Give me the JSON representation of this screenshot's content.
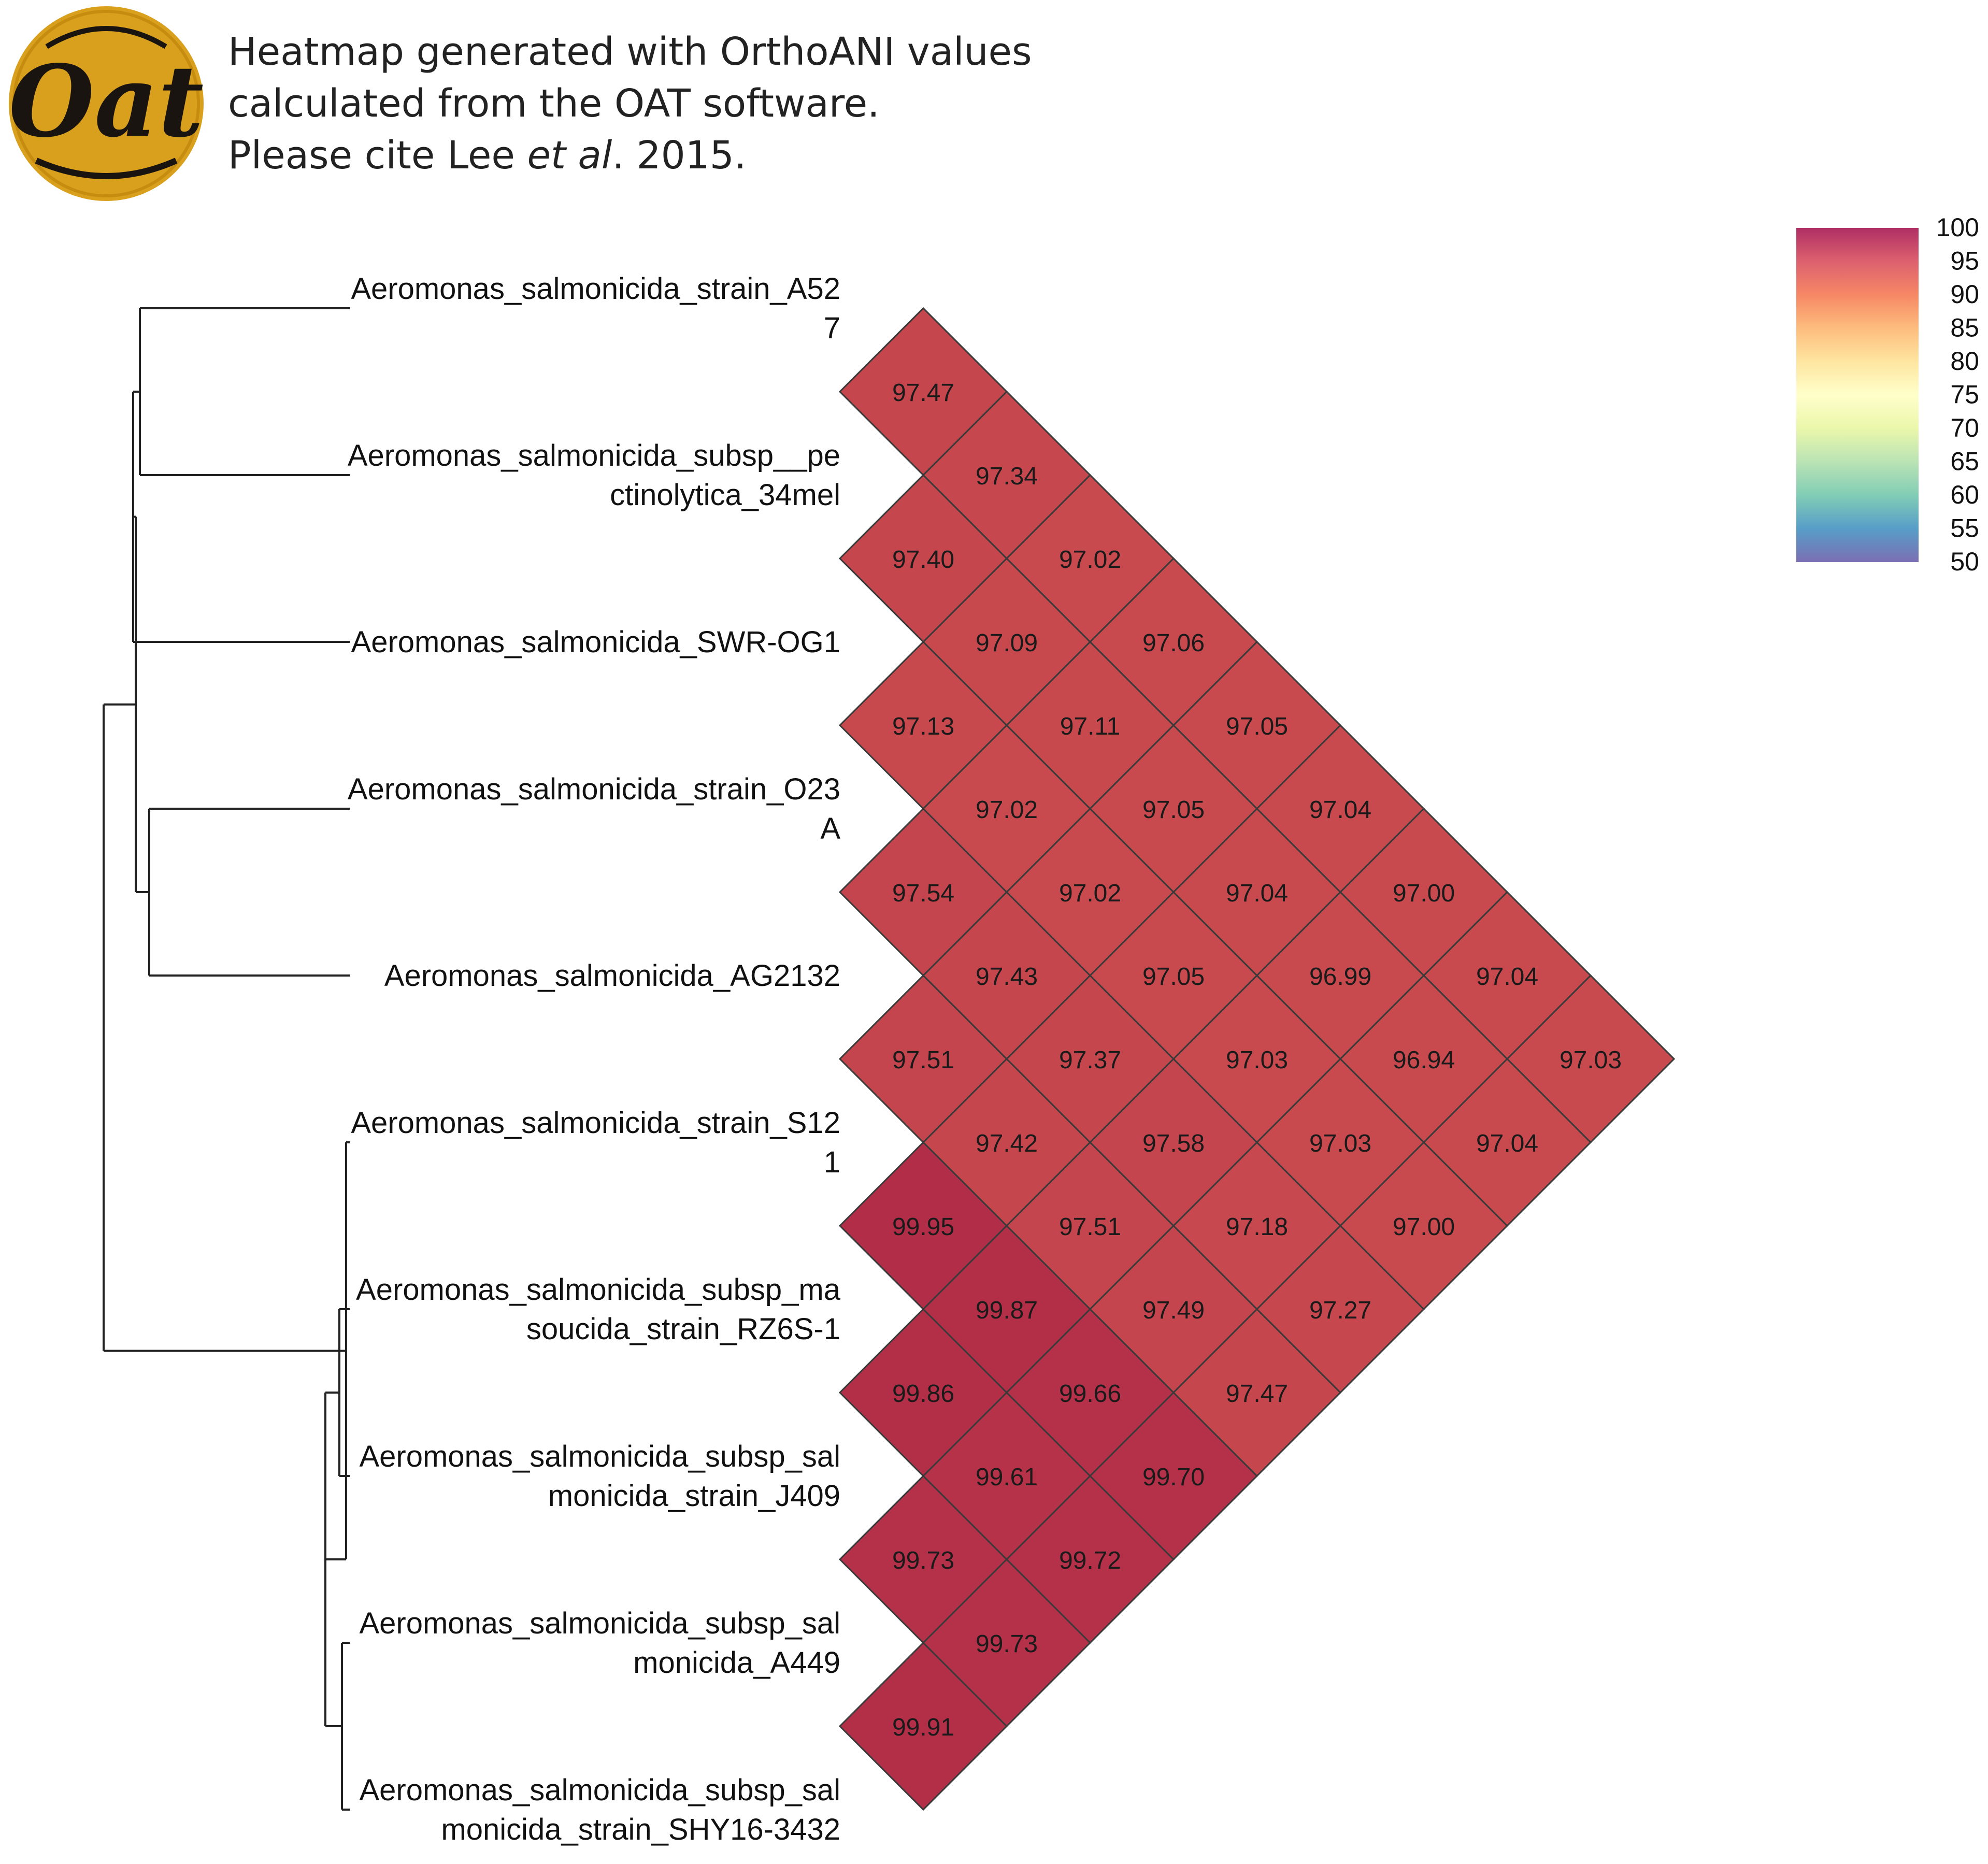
{
  "header": {
    "logo_text": "Oat",
    "line1": "Heatmap generated with OrthoANI values",
    "line2": "calculated from the OAT software.",
    "line3_prefix": "Please cite Lee ",
    "line3_italic": "et al",
    "line3_suffix": ". 2015."
  },
  "chart_data": {
    "type": "heatmap",
    "layout": "triangular (rotated 45°, lower triangle)",
    "labels": [
      [
        "Aeromonas_salmonicida_strain_A52",
        "7"
      ],
      [
        "Aeromonas_salmonicida_subsp__pe",
        "ctinolytica_34mel"
      ],
      [
        "Aeromonas_salmonicida_SWR-OG1"
      ],
      [
        "Aeromonas_salmonicida_strain_O23",
        "A"
      ],
      [
        "Aeromonas_salmonicida_AG2132"
      ],
      [
        "Aeromonas_salmonicida_strain_S12",
        "1"
      ],
      [
        "Aeromonas_salmonicida_subsp_ma",
        "soucida_strain_RZ6S-1"
      ],
      [
        "Aeromonas_salmonicida_subsp_sal",
        "monicida_strain_J409"
      ],
      [
        "Aeromonas_salmonicida_subsp_sal",
        "monicida_A449"
      ],
      [
        "Aeromonas_salmonicida_subsp_sal",
        "monicida_strain_SHY16-3432"
      ]
    ],
    "values": [
      [
        "97.47",
        "97.40",
        "97.13",
        "97.54",
        "97.51",
        "99.95",
        "99.86",
        "99.73",
        "99.91"
      ],
      [
        "97.34",
        "97.09",
        "97.02",
        "97.43",
        "97.42",
        "99.87",
        "99.61",
        "99.73"
      ],
      [
        "97.02",
        "97.11",
        "97.02",
        "97.37",
        "97.51",
        "99.66",
        "99.72"
      ],
      [
        "97.06",
        "97.05",
        "97.05",
        "97.58",
        "97.49",
        "99.70"
      ],
      [
        "97.05",
        "97.04",
        "97.03",
        "97.18",
        "97.47"
      ],
      [
        "97.04",
        "96.99",
        "97.03",
        "97.27"
      ],
      [
        "97.00",
        "96.94",
        "97.00"
      ],
      [
        "97.04",
        "97.04"
      ],
      [
        "97.03"
      ]
    ],
    "legend": {
      "ticks": [
        "100",
        "95",
        "90",
        "85",
        "80",
        "75",
        "70",
        "65",
        "60",
        "55",
        "50"
      ],
      "range": [
        50,
        100
      ],
      "colormap": [
        "#5e4fa2",
        "#3288bd",
        "#66c2a5",
        "#abdda4",
        "#e6f598",
        "#ffffbf",
        "#fee08b",
        "#fdae61",
        "#f46d43",
        "#d53e4f",
        "#9e0142"
      ]
    },
    "colors": {
      "cell_low": "#c84a4e",
      "cell_high": "#b22e48",
      "cell_border": "#3a3a3a"
    },
    "dendrogram": {
      "merge_order": [
        [
          8,
          9
        ],
        [
          6,
          7
        ],
        [
          "6,7",
          "8,9"
        ],
        [
          5,
          "6,7,8,9"
        ],
        [
          3,
          4
        ],
        [
          0,
          1
        ],
        [
          "0,1",
          2
        ],
        [
          "0,1,2",
          "3,4"
        ],
        [
          "0-4",
          "5-9"
        ]
      ],
      "description": "hierarchical clustering tree"
    }
  }
}
